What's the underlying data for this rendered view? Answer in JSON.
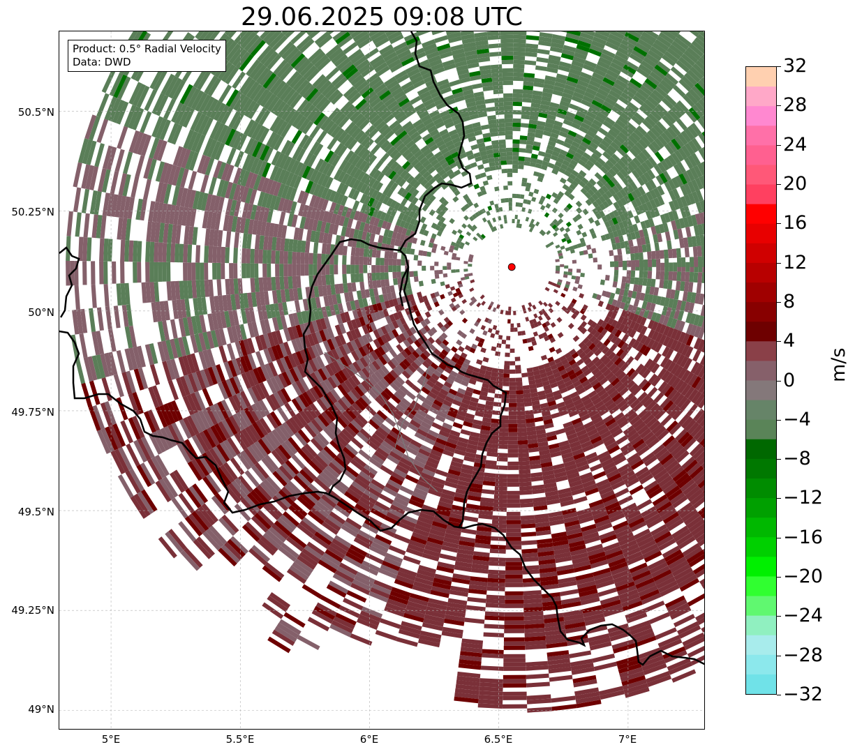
{
  "title": "29.06.2025 09:08 UTC",
  "info_box": {
    "product": "Product: 0.5° Radial Velocity",
    "data": "Data: DWD"
  },
  "axes": {
    "y_labels": [
      "50.5°N",
      "50.25°N",
      "50°N",
      "49.75°N",
      "49.5°N",
      "49.25°N",
      "49°N"
    ],
    "x_labels": [
      "5°E",
      "5.5°E",
      "6°E",
      "6.5°E",
      "7°E"
    ]
  },
  "radar_site": {
    "lon": 6.55,
    "lat": 50.11,
    "marker_color": "#ff0000"
  },
  "colorbar": {
    "unit": "m/s",
    "tick_labels": [
      "32",
      "28",
      "24",
      "20",
      "16",
      "12",
      "8",
      "4",
      "0",
      "−4",
      "−8",
      "−12",
      "−16",
      "−20",
      "−24",
      "−28",
      "−32"
    ],
    "colors_top_to_bottom": [
      "#ffd0b0",
      "#ffa8c8",
      "#ff88d0",
      "#ff70a8",
      "#ff6090",
      "#ff5878",
      "#ff4060",
      "#ff0000",
      "#e80000",
      "#d00000",
      "#b80000",
      "#a00000",
      "#880000",
      "#6e0000",
      "#8a4048",
      "#86606a",
      "#84787a",
      "#668468",
      "#5a8458",
      "#006800",
      "#007800",
      "#008c00",
      "#00a000",
      "#00b800",
      "#00d000",
      "#00f000",
      "#30ff30",
      "#60f870",
      "#90f0c0",
      "#a8ecec",
      "#8ce8ec",
      "#70e2e8"
    ]
  },
  "colors": {
    "outbound": "#7a3038",
    "outbound_strong": "#6e0000",
    "near_zero": "#84606a",
    "inbound": "#5a7e58",
    "inbound_strong": "#007000",
    "border": "#000000"
  }
}
